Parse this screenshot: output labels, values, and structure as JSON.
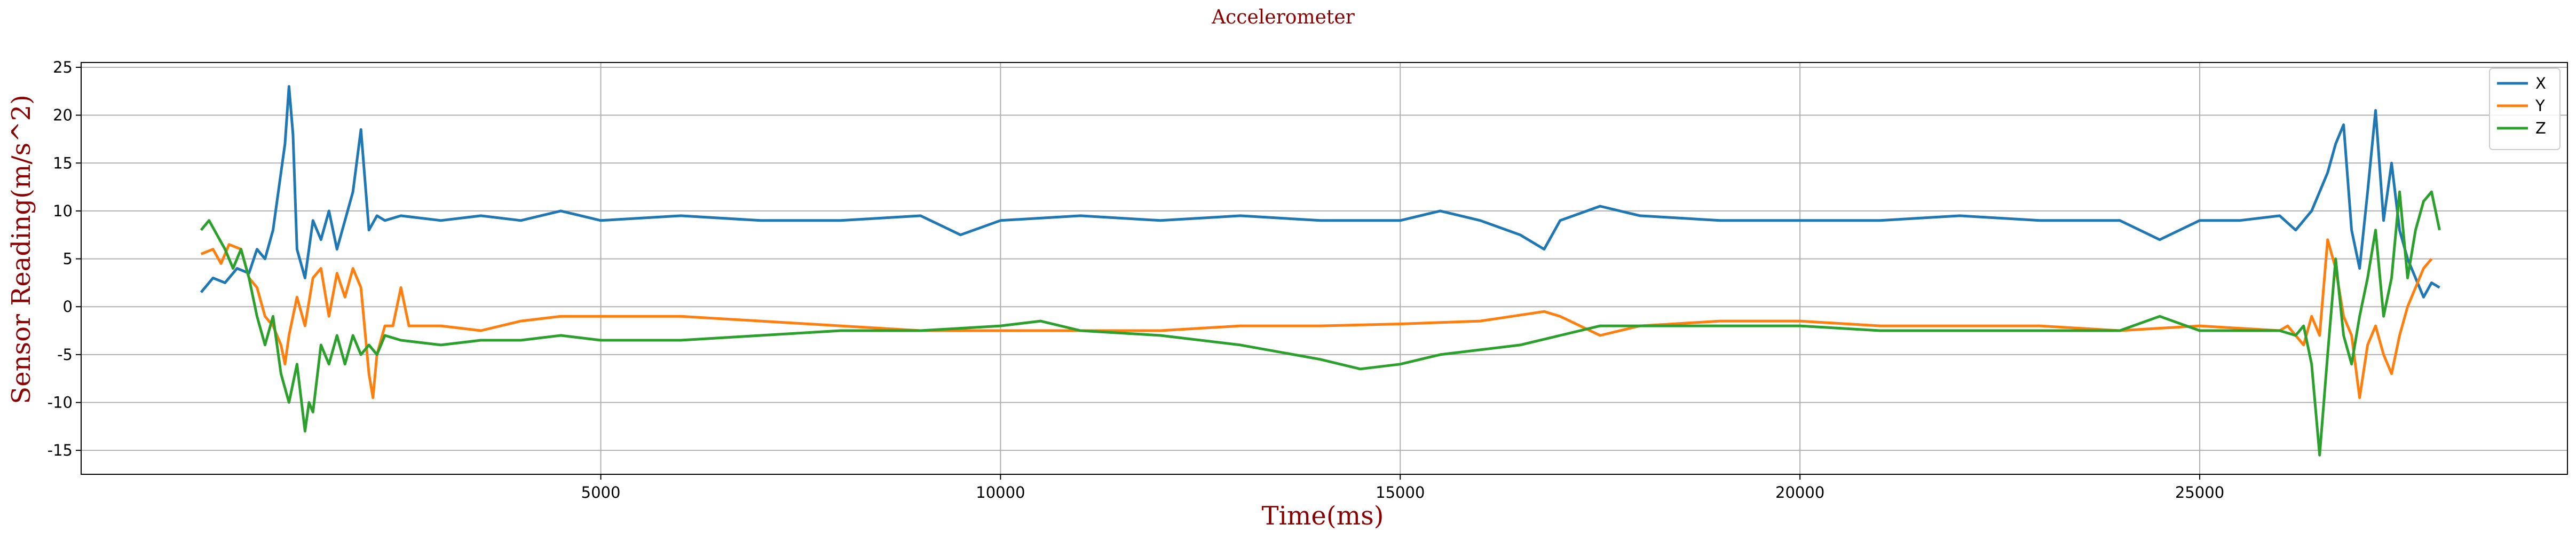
{
  "chart_data": {
    "type": "line",
    "title": "Accelerometer",
    "xlabel": "Time(ms)",
    "ylabel": "Sensor Reading(m/s^2)",
    "xlim": [
      -1500,
      29600
    ],
    "ylim": [
      -17.5,
      25.5
    ],
    "xticks": [
      5000,
      10000,
      15000,
      20000,
      25000
    ],
    "yticks": [
      -15,
      -10,
      -5,
      0,
      5,
      10,
      15,
      20,
      25
    ],
    "grid": true,
    "legend": "top-right",
    "series": [
      {
        "name": "X",
        "color": "#1f77b4",
        "points": [
          [
            0,
            1.5
          ],
          [
            150,
            3
          ],
          [
            300,
            2.5
          ],
          [
            450,
            4
          ],
          [
            600,
            3.5
          ],
          [
            700,
            6
          ],
          [
            800,
            5
          ],
          [
            900,
            8
          ],
          [
            1000,
            14
          ],
          [
            1050,
            17
          ],
          [
            1100,
            23
          ],
          [
            1150,
            18
          ],
          [
            1200,
            6
          ],
          [
            1300,
            3
          ],
          [
            1400,
            9
          ],
          [
            1500,
            7
          ],
          [
            1600,
            10
          ],
          [
            1700,
            6
          ],
          [
            1800,
            9
          ],
          [
            1900,
            12
          ],
          [
            2000,
            18.5
          ],
          [
            2100,
            8
          ],
          [
            2200,
            9.5
          ],
          [
            2300,
            9
          ],
          [
            2500,
            9.5
          ],
          [
            3000,
            9
          ],
          [
            3500,
            9.5
          ],
          [
            4000,
            9
          ],
          [
            4500,
            10
          ],
          [
            5000,
            9
          ],
          [
            6000,
            9.5
          ],
          [
            7000,
            9
          ],
          [
            8000,
            9
          ],
          [
            9000,
            9.5
          ],
          [
            9500,
            7.5
          ],
          [
            10000,
            9
          ],
          [
            11000,
            9.5
          ],
          [
            12000,
            9
          ],
          [
            13000,
            9.5
          ],
          [
            14000,
            9
          ],
          [
            15000,
            9
          ],
          [
            15500,
            10
          ],
          [
            16000,
            9
          ],
          [
            16500,
            7.5
          ],
          [
            16800,
            6
          ],
          [
            17000,
            9
          ],
          [
            17500,
            10.5
          ],
          [
            18000,
            9.5
          ],
          [
            19000,
            9
          ],
          [
            20000,
            9
          ],
          [
            21000,
            9
          ],
          [
            22000,
            9.5
          ],
          [
            23000,
            9
          ],
          [
            24000,
            9
          ],
          [
            24500,
            7
          ],
          [
            25000,
            9
          ],
          [
            25500,
            9
          ],
          [
            26000,
            9.5
          ],
          [
            26200,
            8
          ],
          [
            26400,
            10
          ],
          [
            26500,
            12
          ],
          [
            26600,
            14
          ],
          [
            26700,
            17
          ],
          [
            26800,
            19
          ],
          [
            26900,
            8
          ],
          [
            27000,
            4
          ],
          [
            27100,
            12
          ],
          [
            27200,
            20.5
          ],
          [
            27300,
            9
          ],
          [
            27400,
            15
          ],
          [
            27500,
            8
          ],
          [
            27600,
            5
          ],
          [
            27700,
            3
          ],
          [
            27800,
            1
          ],
          [
            27900,
            2.5
          ],
          [
            28000,
            2
          ]
        ]
      },
      {
        "name": "Y",
        "color": "#ff7f0e",
        "points": [
          [
            0,
            5.5
          ],
          [
            150,
            6
          ],
          [
            250,
            4.5
          ],
          [
            350,
            6.5
          ],
          [
            500,
            6
          ],
          [
            600,
            3
          ],
          [
            700,
            2
          ],
          [
            800,
            -1
          ],
          [
            900,
            -2
          ],
          [
            1000,
            -4
          ],
          [
            1050,
            -6
          ],
          [
            1100,
            -3
          ],
          [
            1200,
            1
          ],
          [
            1300,
            -2
          ],
          [
            1400,
            3
          ],
          [
            1500,
            4
          ],
          [
            1600,
            -1
          ],
          [
            1700,
            3.5
          ],
          [
            1800,
            1
          ],
          [
            1900,
            4
          ],
          [
            2000,
            2
          ],
          [
            2100,
            -7
          ],
          [
            2150,
            -9.5
          ],
          [
            2200,
            -5
          ],
          [
            2300,
            -2
          ],
          [
            2400,
            -2
          ],
          [
            2500,
            2
          ],
          [
            2600,
            -2
          ],
          [
            3000,
            -2
          ],
          [
            3500,
            -2.5
          ],
          [
            4000,
            -1.5
          ],
          [
            4500,
            -1
          ],
          [
            5000,
            -1
          ],
          [
            6000,
            -1
          ],
          [
            7000,
            -1.5
          ],
          [
            8000,
            -2
          ],
          [
            9000,
            -2.5
          ],
          [
            10000,
            -2.5
          ],
          [
            11000,
            -2.5
          ],
          [
            12000,
            -2.5
          ],
          [
            13000,
            -2
          ],
          [
            14000,
            -2
          ],
          [
            15000,
            -1.8
          ],
          [
            16000,
            -1.5
          ],
          [
            16800,
            -0.5
          ],
          [
            17000,
            -1
          ],
          [
            17500,
            -3
          ],
          [
            18000,
            -2
          ],
          [
            19000,
            -1.5
          ],
          [
            20000,
            -1.5
          ],
          [
            21000,
            -2
          ],
          [
            22000,
            -2
          ],
          [
            23000,
            -2
          ],
          [
            24000,
            -2.5
          ],
          [
            25000,
            -2
          ],
          [
            26000,
            -2.5
          ],
          [
            26100,
            -2
          ],
          [
            26300,
            -4
          ],
          [
            26400,
            -1
          ],
          [
            26500,
            -3
          ],
          [
            26600,
            7
          ],
          [
            26700,
            4
          ],
          [
            26800,
            -1
          ],
          [
            26900,
            -3
          ],
          [
            27000,
            -9.5
          ],
          [
            27100,
            -4
          ],
          [
            27200,
            -2
          ],
          [
            27300,
            -5
          ],
          [
            27400,
            -7
          ],
          [
            27500,
            -3
          ],
          [
            27600,
            0
          ],
          [
            27700,
            2
          ],
          [
            27800,
            4
          ],
          [
            27900,
            5
          ]
        ]
      },
      {
        "name": "Z",
        "color": "#2ca02c",
        "points": [
          [
            0,
            8
          ],
          [
            100,
            9
          ],
          [
            200,
            7.5
          ],
          [
            300,
            6
          ],
          [
            400,
            4
          ],
          [
            500,
            6
          ],
          [
            600,
            3
          ],
          [
            700,
            -1
          ],
          [
            800,
            -4
          ],
          [
            900,
            -1
          ],
          [
            1000,
            -7
          ],
          [
            1100,
            -10
          ],
          [
            1200,
            -6
          ],
          [
            1300,
            -13
          ],
          [
            1350,
            -10
          ],
          [
            1400,
            -11
          ],
          [
            1500,
            -4
          ],
          [
            1600,
            -6
          ],
          [
            1700,
            -3
          ],
          [
            1800,
            -6
          ],
          [
            1900,
            -3
          ],
          [
            2000,
            -5
          ],
          [
            2100,
            -4
          ],
          [
            2200,
            -5
          ],
          [
            2300,
            -3
          ],
          [
            2500,
            -3.5
          ],
          [
            3000,
            -4
          ],
          [
            3500,
            -3.5
          ],
          [
            4000,
            -3.5
          ],
          [
            4500,
            -3
          ],
          [
            5000,
            -3.5
          ],
          [
            6000,
            -3.5
          ],
          [
            7000,
            -3
          ],
          [
            8000,
            -2.5
          ],
          [
            9000,
            -2.5
          ],
          [
            10000,
            -2
          ],
          [
            10500,
            -1.5
          ],
          [
            11000,
            -2.5
          ],
          [
            12000,
            -3
          ],
          [
            13000,
            -4
          ],
          [
            14000,
            -5.5
          ],
          [
            14500,
            -6.5
          ],
          [
            15000,
            -6
          ],
          [
            15500,
            -5
          ],
          [
            16000,
            -4.5
          ],
          [
            16500,
            -4
          ],
          [
            17000,
            -3
          ],
          [
            17500,
            -2
          ],
          [
            18000,
            -2
          ],
          [
            19000,
            -2
          ],
          [
            20000,
            -2
          ],
          [
            21000,
            -2.5
          ],
          [
            22000,
            -2.5
          ],
          [
            23000,
            -2.5
          ],
          [
            24000,
            -2.5
          ],
          [
            24500,
            -1
          ],
          [
            25000,
            -2.5
          ],
          [
            25500,
            -2.5
          ],
          [
            26000,
            -2.5
          ],
          [
            26200,
            -3
          ],
          [
            26300,
            -2
          ],
          [
            26400,
            -6
          ],
          [
            26500,
            -15.5
          ],
          [
            26600,
            -5
          ],
          [
            26700,
            5
          ],
          [
            26800,
            -3
          ],
          [
            26900,
            -6
          ],
          [
            27000,
            -1
          ],
          [
            27100,
            3
          ],
          [
            27200,
            8
          ],
          [
            27300,
            -1
          ],
          [
            27400,
            3
          ],
          [
            27500,
            12
          ],
          [
            27600,
            3
          ],
          [
            27700,
            8
          ],
          [
            27800,
            11
          ],
          [
            27900,
            12
          ],
          [
            28000,
            8
          ]
        ]
      }
    ]
  }
}
